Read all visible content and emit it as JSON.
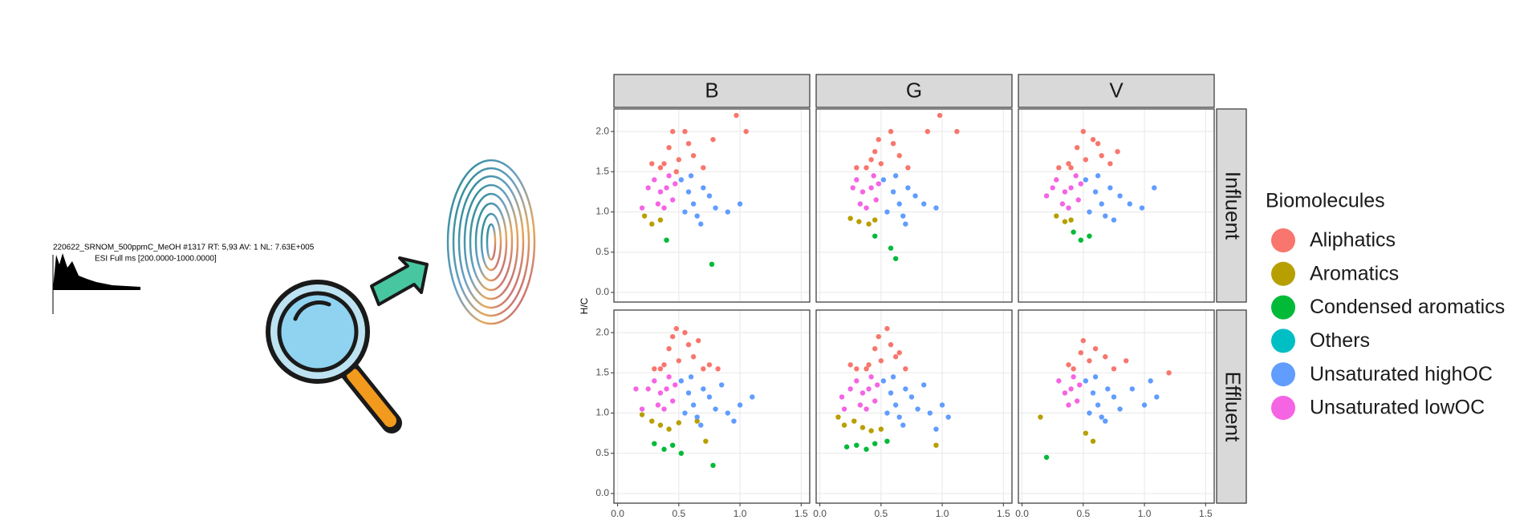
{
  "spectrum": {
    "header": "220622_SRNOM_500ppmC_MeOH #1317 RT: 5,93 AV: 1 NL: 7.63E+005",
    "filter": "ESI Full ms [200.0000-1000.0000]"
  },
  "chart_data": {
    "type": "scatter",
    "y_label": "H/C",
    "columns": [
      "B",
      "G",
      "V"
    ],
    "xlim": [
      -0.03,
      1.57
    ],
    "xticks": [
      {
        "value": 0,
        "label": "0.0"
      },
      {
        "value": 0.5,
        "label": "0.5"
      },
      {
        "value": 1,
        "label": "1.0"
      },
      {
        "value": 1.5,
        "label": "1.5"
      }
    ],
    "ylim": [
      -0.12,
      2.28
    ],
    "yticks": [
      {
        "value": 0,
        "label": "0.0"
      },
      {
        "value": 0.5,
        "label": "0.5"
      },
      {
        "value": 1,
        "label": "1.0"
      },
      {
        "value": 1.5,
        "label": "1.5"
      },
      {
        "value": 2,
        "label": "2.0"
      }
    ],
    "grid": true,
    "legend": {
      "title": "Biomolecules",
      "position": "right",
      "entries": [
        {
          "name": "Aliphatics",
          "color": "#F8766D"
        },
        {
          "name": "Aromatics",
          "color": "#B79F00"
        },
        {
          "name": "Condensed aromatics",
          "color": "#00BA38"
        },
        {
          "name": "Others",
          "color": "#00BFC4"
        },
        {
          "name": "Unsaturated highOC",
          "color": "#619CFF"
        },
        {
          "name": "Unsaturated lowOC",
          "color": "#F564E3"
        }
      ]
    },
    "rows": [
      {
        "label": "Influent",
        "panels": [
          {
            "series": [
              {
                "x": [
                  0.35,
                  0.42,
                  0.5,
                  0.55,
                  0.62,
                  0.7,
                  0.45,
                  0.38,
                  0.58,
                  0.78,
                  0.97,
                  1.05,
                  0.28,
                  0.48
                ],
                "y": [
                  1.55,
                  1.8,
                  1.65,
                  2.0,
                  1.7,
                  1.55,
                  2.0,
                  1.6,
                  1.85,
                  1.9,
                  2.2,
                  2.0,
                  1.6,
                  1.5
                ]
              },
              {
                "x": [
                  0.22,
                  0.28,
                  0.35
                ],
                "y": [
                  0.95,
                  0.85,
                  0.9
                ]
              },
              {
                "x": [
                  0.4,
                  0.77
                ],
                "y": [
                  0.65,
                  0.35
                ]
              },
              {
                "x": [],
                "y": []
              },
              {
                "x": [
                  0.52,
                  0.58,
                  0.62,
                  0.7,
                  0.55,
                  0.65,
                  0.75,
                  0.6,
                  0.8,
                  0.9,
                  1.0,
                  0.68
                ],
                "y": [
                  1.4,
                  1.25,
                  1.1,
                  1.3,
                  1.0,
                  0.95,
                  1.2,
                  1.45,
                  1.05,
                  1.0,
                  1.1,
                  0.85
                ]
              },
              {
                "x": [
                  0.3,
                  0.35,
                  0.4,
                  0.45,
                  0.38,
                  0.42,
                  0.25,
                  0.47,
                  0.33,
                  0.2
                ],
                "y": [
                  1.4,
                  1.25,
                  1.3,
                  1.15,
                  1.05,
                  1.45,
                  1.3,
                  1.35,
                  1.1,
                  1.05
                ]
              }
            ]
          },
          {
            "series": [
              {
                "x": [
                  0.38,
                  0.45,
                  0.5,
                  0.58,
                  0.65,
                  0.72,
                  0.48,
                  0.42,
                  0.6,
                  0.88,
                  0.98,
                  1.12,
                  0.3
                ],
                "y": [
                  1.55,
                  1.75,
                  1.6,
                  2.0,
                  1.7,
                  1.55,
                  1.9,
                  1.65,
                  1.85,
                  2.0,
                  2.2,
                  2.0,
                  1.55
                ]
              },
              {
                "x": [
                  0.25,
                  0.32,
                  0.4,
                  0.45
                ],
                "y": [
                  0.92,
                  0.88,
                  0.85,
                  0.9
                ]
              },
              {
                "x": [
                  0.45,
                  0.58,
                  0.62
                ],
                "y": [
                  0.7,
                  0.55,
                  0.42
                ]
              },
              {
                "x": [],
                "y": []
              },
              {
                "x": [
                  0.52,
                  0.6,
                  0.65,
                  0.72,
                  0.55,
                  0.68,
                  0.78,
                  0.62,
                  0.85,
                  0.95,
                  0.7
                ],
                "y": [
                  1.4,
                  1.25,
                  1.1,
                  1.3,
                  1.0,
                  0.95,
                  1.2,
                  1.45,
                  1.1,
                  1.05,
                  0.85
                ]
              },
              {
                "x": [
                  0.3,
                  0.35,
                  0.42,
                  0.46,
                  0.38,
                  0.44,
                  0.27,
                  0.48,
                  0.33
                ],
                "y": [
                  1.4,
                  1.25,
                  1.3,
                  1.15,
                  1.05,
                  1.45,
                  1.3,
                  1.35,
                  1.1
                ]
              }
            ]
          },
          {
            "series": [
              {
                "x": [
                  0.4,
                  0.45,
                  0.52,
                  0.58,
                  0.65,
                  0.72,
                  0.5,
                  0.38,
                  0.62,
                  0.78,
                  0.3
                ],
                "y": [
                  1.55,
                  1.8,
                  1.65,
                  1.9,
                  1.7,
                  1.6,
                  2.0,
                  1.6,
                  1.85,
                  1.75,
                  1.55
                ]
              },
              {
                "x": [
                  0.28,
                  0.35,
                  0.4
                ],
                "y": [
                  0.95,
                  0.88,
                  0.9
                ]
              },
              {
                "x": [
                  0.42,
                  0.48,
                  0.55
                ],
                "y": [
                  0.75,
                  0.65,
                  0.7
                ]
              },
              {
                "x": [],
                "y": []
              },
              {
                "x": [
                  0.52,
                  0.6,
                  0.65,
                  0.72,
                  0.55,
                  0.68,
                  0.8,
                  0.62,
                  0.88,
                  0.98,
                  1.08,
                  0.75
                ],
                "y": [
                  1.4,
                  1.25,
                  1.1,
                  1.3,
                  1.0,
                  0.95,
                  1.2,
                  1.45,
                  1.1,
                  1.05,
                  1.3,
                  0.9
                ]
              },
              {
                "x": [
                  0.28,
                  0.35,
                  0.4,
                  0.46,
                  0.38,
                  0.44,
                  0.25,
                  0.48,
                  0.33,
                  0.2
                ],
                "y": [
                  1.4,
                  1.25,
                  1.3,
                  1.15,
                  1.05,
                  1.45,
                  1.3,
                  1.35,
                  1.1,
                  1.2
                ]
              }
            ]
          }
        ]
      },
      {
        "label": "Effluent",
        "panels": [
          {
            "series": [
              {
                "x": [
                  0.35,
                  0.42,
                  0.5,
                  0.55,
                  0.62,
                  0.7,
                  0.45,
                  0.38,
                  0.58,
                  0.75,
                  0.82,
                  0.48,
                  0.3,
                  0.66
                ],
                "y": [
                  1.55,
                  1.8,
                  1.65,
                  2.0,
                  1.7,
                  1.55,
                  1.95,
                  1.6,
                  1.85,
                  1.6,
                  1.55,
                  2.05,
                  1.55,
                  1.9
                ]
              },
              {
                "x": [
                  0.2,
                  0.28,
                  0.35,
                  0.42,
                  0.5,
                  0.65,
                  0.72
                ],
                "y": [
                  0.98,
                  0.9,
                  0.85,
                  0.8,
                  0.88,
                  0.9,
                  0.65
                ]
              },
              {
                "x": [
                  0.3,
                  0.38,
                  0.45,
                  0.78,
                  0.52
                ],
                "y": [
                  0.62,
                  0.55,
                  0.6,
                  0.35,
                  0.5
                ]
              },
              {
                "x": [],
                "y": []
              },
              {
                "x": [
                  0.52,
                  0.58,
                  0.62,
                  0.7,
                  0.55,
                  0.65,
                  0.75,
                  0.6,
                  0.8,
                  0.9,
                  1.0,
                  0.68,
                  0.85,
                  1.1,
                  0.95
                ],
                "y": [
                  1.4,
                  1.25,
                  1.1,
                  1.3,
                  1.0,
                  0.95,
                  1.2,
                  1.45,
                  1.05,
                  1.0,
                  1.1,
                  0.85,
                  1.35,
                  1.2,
                  0.9
                ]
              },
              {
                "x": [
                  0.3,
                  0.35,
                  0.4,
                  0.45,
                  0.38,
                  0.42,
                  0.25,
                  0.47,
                  0.33,
                  0.2,
                  0.15
                ],
                "y": [
                  1.4,
                  1.25,
                  1.3,
                  1.15,
                  1.05,
                  1.45,
                  1.3,
                  1.35,
                  1.1,
                  1.05,
                  1.3
                ]
              }
            ]
          },
          {
            "series": [
              {
                "x": [
                  0.38,
                  0.45,
                  0.5,
                  0.55,
                  0.62,
                  0.7,
                  0.48,
                  0.4,
                  0.58,
                  0.3,
                  0.25,
                  0.65
                ],
                "y": [
                  1.55,
                  1.8,
                  1.65,
                  2.05,
                  1.7,
                  1.55,
                  1.95,
                  1.6,
                  1.85,
                  1.55,
                  1.6,
                  1.75
                ]
              },
              {
                "x": [
                  0.15,
                  0.2,
                  0.28,
                  0.35,
                  0.42,
                  0.5,
                  0.95
                ],
                "y": [
                  0.95,
                  0.85,
                  0.9,
                  0.82,
                  0.78,
                  0.8,
                  0.6
                ]
              },
              {
                "x": [
                  0.22,
                  0.3,
                  0.38,
                  0.45,
                  0.55
                ],
                "y": [
                  0.58,
                  0.6,
                  0.55,
                  0.62,
                  0.65
                ]
              },
              {
                "x": [],
                "y": []
              },
              {
                "x": [
                  0.52,
                  0.58,
                  0.62,
                  0.7,
                  0.55,
                  0.65,
                  0.75,
                  0.6,
                  0.8,
                  0.9,
                  1.0,
                  0.68,
                  0.85,
                  1.05,
                  0.95
                ],
                "y": [
                  1.4,
                  1.25,
                  1.1,
                  1.3,
                  1.0,
                  0.95,
                  1.2,
                  1.45,
                  1.05,
                  1.0,
                  1.1,
                  0.85,
                  1.35,
                  0.95,
                  0.8
                ]
              },
              {
                "x": [
                  0.3,
                  0.35,
                  0.4,
                  0.45,
                  0.38,
                  0.42,
                  0.25,
                  0.47,
                  0.33,
                  0.2,
                  0.18
                ],
                "y": [
                  1.4,
                  1.25,
                  1.3,
                  1.15,
                  1.05,
                  1.45,
                  1.3,
                  1.35,
                  1.1,
                  1.05,
                  1.2
                ]
              }
            ]
          },
          {
            "series": [
              {
                "x": [
                  0.42,
                  0.48,
                  0.55,
                  0.6,
                  0.68,
                  0.75,
                  0.5,
                  0.38,
                  0.85,
                  1.2
                ],
                "y": [
                  1.55,
                  1.75,
                  1.65,
                  1.8,
                  1.7,
                  1.55,
                  1.9,
                  1.6,
                  1.65,
                  1.5
                ]
              },
              {
                "x": [
                  0.15,
                  0.52,
                  0.58
                ],
                "y": [
                  0.95,
                  0.75,
                  0.65
                ]
              },
              {
                "x": [
                  0.2
                ],
                "y": [
                  0.45
                ]
              },
              {
                "x": [],
                "y": []
              },
              {
                "x": [
                  0.52,
                  0.58,
                  0.62,
                  0.7,
                  0.55,
                  0.65,
                  0.75,
                  0.6,
                  0.8,
                  0.9,
                  1.0,
                  0.68,
                  1.05,
                  1.1
                ],
                "y": [
                  1.4,
                  1.25,
                  1.1,
                  1.3,
                  1.0,
                  0.95,
                  1.2,
                  1.45,
                  1.05,
                  1.3,
                  1.1,
                  0.9,
                  1.4,
                  1.2
                ]
              },
              {
                "x": [
                  0.3,
                  0.35,
                  0.4,
                  0.45,
                  0.38,
                  0.42,
                  0.47
                ],
                "y": [
                  1.4,
                  1.25,
                  1.3,
                  1.15,
                  1.1,
                  1.45,
                  1.35
                ]
              }
            ]
          }
        ]
      }
    ]
  }
}
